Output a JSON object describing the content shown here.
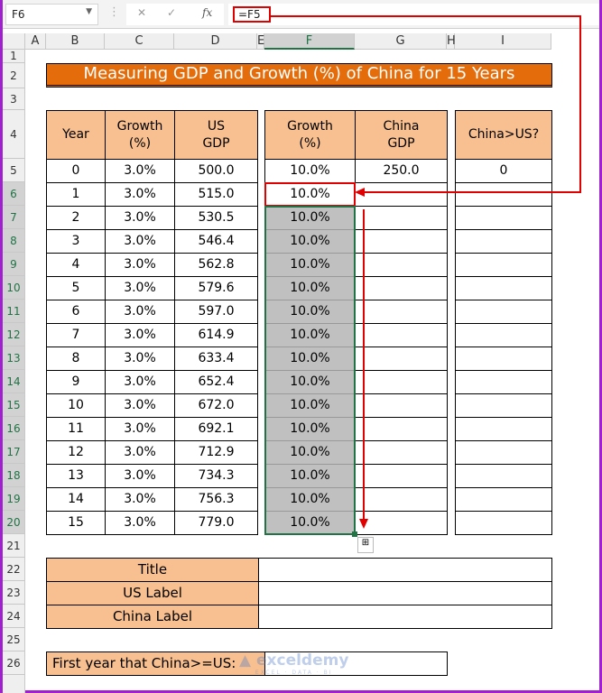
{
  "formula_bar": {
    "name_box": "F6",
    "formula": "=F5",
    "cancel": "✕",
    "enter": "✓",
    "fx": "fx"
  },
  "columns": [
    "A",
    "B",
    "C",
    "D",
    "E",
    "F",
    "G",
    "H",
    "I"
  ],
  "rows": [
    "1",
    "2",
    "3",
    "4",
    "5",
    "6",
    "7",
    "8",
    "9",
    "10",
    "11",
    "12",
    "13",
    "14",
    "15",
    "16",
    "17",
    "18",
    "19",
    "20",
    "21",
    "22",
    "23",
    "24",
    "25",
    "26"
  ],
  "title": "Measuring GDP and Growth (%) of China for 15 Years",
  "colors": {
    "title_bg": "#e46c0a",
    "header_bg": "#f8c090",
    "selection": "#c0c0c0",
    "annotation": "#e00000",
    "accent": "#217346"
  },
  "table1": {
    "headers": [
      "Year",
      "Growth\n(%)",
      "US\nGDP"
    ],
    "rows": [
      [
        "0",
        "3.0%",
        "500.0"
      ],
      [
        "1",
        "3.0%",
        "515.0"
      ],
      [
        "2",
        "3.0%",
        "530.5"
      ],
      [
        "3",
        "3.0%",
        "546.4"
      ],
      [
        "4",
        "3.0%",
        "562.8"
      ],
      [
        "5",
        "3.0%",
        "579.6"
      ],
      [
        "6",
        "3.0%",
        "597.0"
      ],
      [
        "7",
        "3.0%",
        "614.9"
      ],
      [
        "8",
        "3.0%",
        "633.4"
      ],
      [
        "9",
        "3.0%",
        "652.4"
      ],
      [
        "10",
        "3.0%",
        "672.0"
      ],
      [
        "11",
        "3.0%",
        "692.1"
      ],
      [
        "12",
        "3.0%",
        "712.9"
      ],
      [
        "13",
        "3.0%",
        "734.3"
      ],
      [
        "14",
        "3.0%",
        "756.3"
      ],
      [
        "15",
        "3.0%",
        "779.0"
      ]
    ]
  },
  "table2": {
    "headers": [
      "Growth\n(%)",
      "China\nGDP"
    ],
    "rows": [
      [
        "10.0%",
        "250.0"
      ],
      [
        "10.0%",
        ""
      ],
      [
        "10.0%",
        ""
      ],
      [
        "10.0%",
        ""
      ],
      [
        "10.0%",
        ""
      ],
      [
        "10.0%",
        ""
      ],
      [
        "10.0%",
        ""
      ],
      [
        "10.0%",
        ""
      ],
      [
        "10.0%",
        ""
      ],
      [
        "10.0%",
        ""
      ],
      [
        "10.0%",
        ""
      ],
      [
        "10.0%",
        ""
      ],
      [
        "10.0%",
        ""
      ],
      [
        "10.0%",
        ""
      ],
      [
        "10.0%",
        ""
      ],
      [
        "10.0%",
        ""
      ]
    ]
  },
  "table3": {
    "header": "China>US?",
    "rows": [
      "0",
      "",
      "",
      "",
      "",
      "",
      "",
      "",
      "",
      "",
      "",
      "",
      "",
      "",
      "",
      ""
    ]
  },
  "labels": [
    {
      "label": "Title",
      "value": ""
    },
    {
      "label": "US Label",
      "value": ""
    },
    {
      "label": "China Label",
      "value": ""
    }
  ],
  "first_year": {
    "label": "First year that China>=US:",
    "value": ""
  },
  "watermark": {
    "name": "exceldemy",
    "tagline": "EXCEL · DATA · BI"
  }
}
